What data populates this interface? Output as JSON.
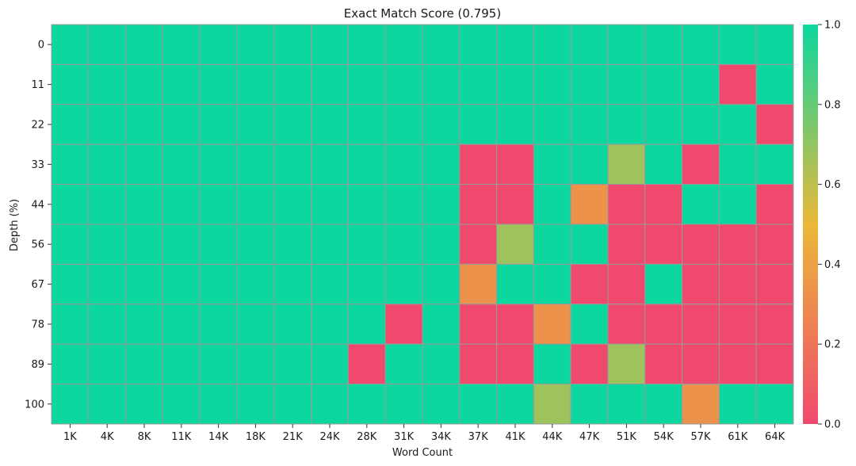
{
  "chart_data": {
    "type": "heatmap",
    "title": "Exact Match Score (0.795)",
    "xlabel": "Word Count",
    "ylabel": "Depth (%)",
    "x_categories": [
      "1K",
      "4K",
      "8K",
      "11K",
      "14K",
      "18K",
      "21K",
      "24K",
      "28K",
      "31K",
      "34K",
      "37K",
      "41K",
      "44K",
      "47K",
      "51K",
      "54K",
      "57K",
      "61K",
      "64K"
    ],
    "y_categories": [
      "0",
      "11",
      "22",
      "33",
      "44",
      "56",
      "67",
      "78",
      "89",
      "100"
    ],
    "values": [
      [
        1,
        1,
        1,
        1,
        1,
        1,
        1,
        1,
        1,
        1,
        1,
        1,
        1,
        1,
        1,
        1,
        1,
        1,
        1,
        1
      ],
      [
        1,
        1,
        1,
        1,
        1,
        1,
        1,
        1,
        1,
        1,
        1,
        1,
        1,
        1,
        1,
        1,
        1,
        1,
        0,
        1
      ],
      [
        1,
        1,
        1,
        1,
        1,
        1,
        1,
        1,
        1,
        1,
        1,
        1,
        1,
        1,
        1,
        1,
        1,
        1,
        1,
        0
      ],
      [
        1,
        1,
        1,
        1,
        1,
        1,
        1,
        1,
        1,
        1,
        1,
        0,
        0,
        1,
        1,
        0.67,
        1,
        0,
        1,
        1
      ],
      [
        1,
        1,
        1,
        1,
        1,
        1,
        1,
        1,
        1,
        1,
        1,
        0,
        0,
        1,
        0.33,
        0,
        0,
        1,
        1,
        0
      ],
      [
        1,
        1,
        1,
        1,
        1,
        1,
        1,
        1,
        1,
        1,
        1,
        0,
        0.67,
        1,
        1,
        0,
        0,
        0,
        0,
        0
      ],
      [
        1,
        1,
        1,
        1,
        1,
        1,
        1,
        1,
        1,
        1,
        1,
        0.33,
        1,
        1,
        0,
        0,
        1,
        0,
        0,
        0
      ],
      [
        1,
        1,
        1,
        1,
        1,
        1,
        1,
        1,
        1,
        0,
        1,
        0,
        0,
        0.33,
        1,
        0,
        0,
        0,
        0,
        0
      ],
      [
        1,
        1,
        1,
        1,
        1,
        1,
        1,
        1,
        0,
        1,
        1,
        0,
        0,
        1,
        0,
        0.67,
        0,
        0,
        0,
        0
      ],
      [
        1,
        1,
        1,
        1,
        1,
        1,
        1,
        1,
        1,
        1,
        1,
        1,
        1,
        0.67,
        1,
        1,
        1,
        0.33,
        1,
        1
      ]
    ],
    "colorbar": {
      "range": [
        0,
        1
      ],
      "ticks": [
        "0.0",
        "0.2",
        "0.4",
        "0.6",
        "0.8",
        "1.0"
      ],
      "colors": [
        "#F0496E",
        "#EBB839",
        "#0CD79F"
      ]
    },
    "grid": true,
    "grid_color": "#9a9a9a"
  }
}
